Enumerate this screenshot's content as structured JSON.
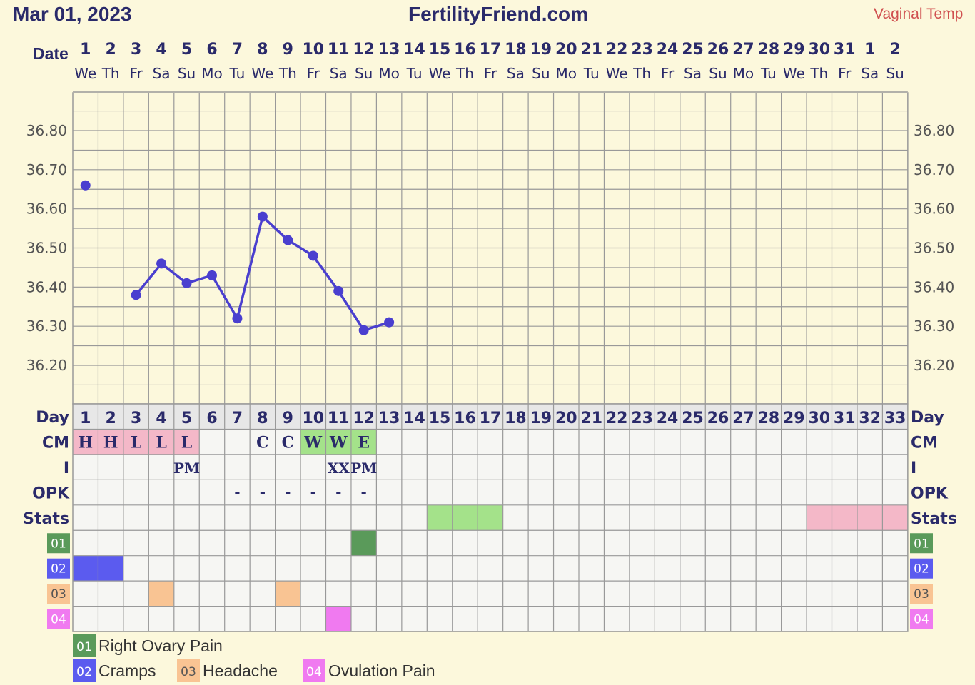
{
  "header": {
    "start_date": "Mar 01, 2023",
    "site": "FertilityFriend.com",
    "temp_type": "Vaginal Temp",
    "date_label": "Date"
  },
  "colors": {
    "background": "#fcf8dc",
    "grid_line": "#999999",
    "temp_line": "#4a3fcf",
    "cm_pink": "#f4b8c8",
    "cm_green": "#a4e28a",
    "stats_green": "#a4e28a",
    "stats_pink": "#f4b8c8",
    "code_01": "#5a9a5a",
    "code_02": "#5b5bef",
    "code_03": "#f9c493",
    "code_04": "#f07af0"
  },
  "dates": {
    "numbers": [
      "1",
      "2",
      "3",
      "4",
      "5",
      "6",
      "7",
      "8",
      "9",
      "10",
      "11",
      "12",
      "13",
      "14",
      "15",
      "16",
      "17",
      "18",
      "19",
      "20",
      "21",
      "22",
      "23",
      "24",
      "25",
      "26",
      "27",
      "28",
      "29",
      "30",
      "31",
      "1",
      "2"
    ],
    "weekdays": [
      "We",
      "Th",
      "Fr",
      "Sa",
      "Su",
      "Mo",
      "Tu",
      "We",
      "Th",
      "Fr",
      "Sa",
      "Su",
      "Mo",
      "Tu",
      "We",
      "Th",
      "Fr",
      "Sa",
      "Su",
      "Mo",
      "Tu",
      "We",
      "Th",
      "Fr",
      "Sa",
      "Su",
      "Mo",
      "Tu",
      "We",
      "Th",
      "Fr",
      "Sa",
      "Su"
    ]
  },
  "chart_data": {
    "type": "line",
    "x_label": "Day",
    "y_ticks": [
      "36.80",
      "36.70",
      "36.60",
      "36.50",
      "36.40",
      "36.30",
      "36.20"
    ],
    "ylim": [
      36.12,
      36.92
    ],
    "grid": true,
    "series": [
      {
        "points": [
          {
            "day": 1,
            "temp": 36.66
          },
          {
            "day": 3,
            "temp": 36.38
          },
          {
            "day": 4,
            "temp": 36.46
          },
          {
            "day": 5,
            "temp": 36.41
          },
          {
            "day": 6,
            "temp": 36.43
          },
          {
            "day": 7,
            "temp": 36.32
          },
          {
            "day": 8,
            "temp": 36.58
          },
          {
            "day": 9,
            "temp": 36.52
          },
          {
            "day": 10,
            "temp": 36.48
          },
          {
            "day": 11,
            "temp": 36.39
          },
          {
            "day": 12,
            "temp": 36.29
          },
          {
            "day": 13,
            "temp": 36.31
          }
        ],
        "connected_from_day": 3
      }
    ]
  },
  "rows": {
    "day_label": "Day",
    "cm_label": "CM",
    "i_label": "I",
    "opk_label": "OPK",
    "stats_label": "Stats",
    "days": [
      "1",
      "2",
      "3",
      "4",
      "5",
      "6",
      "7",
      "8",
      "9",
      "10",
      "11",
      "12",
      "13",
      "14",
      "15",
      "16",
      "17",
      "18",
      "19",
      "20",
      "21",
      "22",
      "23",
      "24",
      "25",
      "26",
      "27",
      "28",
      "29",
      "30",
      "31",
      "32",
      "33"
    ],
    "cm": [
      {
        "day": 1,
        "text": "H",
        "color": "pink"
      },
      {
        "day": 2,
        "text": "H",
        "color": "pink"
      },
      {
        "day": 3,
        "text": "L",
        "color": "pink"
      },
      {
        "day": 4,
        "text": "L",
        "color": "pink"
      },
      {
        "day": 5,
        "text": "L",
        "color": "pink"
      },
      {
        "day": 8,
        "text": "C",
        "color": "none"
      },
      {
        "day": 9,
        "text": "C",
        "color": "none"
      },
      {
        "day": 10,
        "text": "W",
        "color": "green"
      },
      {
        "day": 11,
        "text": "W",
        "color": "green"
      },
      {
        "day": 12,
        "text": "E",
        "color": "green"
      }
    ],
    "intercourse": [
      {
        "day": 5,
        "text": "PM"
      },
      {
        "day": 11,
        "text": "XX"
      },
      {
        "day": 12,
        "text": "PM"
      }
    ],
    "opk": [
      {
        "day": 7,
        "text": "-"
      },
      {
        "day": 8,
        "text": "-"
      },
      {
        "day": 9,
        "text": "-"
      },
      {
        "day": 10,
        "text": "-"
      },
      {
        "day": 11,
        "text": "-"
      },
      {
        "day": 12,
        "text": "-"
      }
    ],
    "stats": [
      {
        "from": 15,
        "to": 17,
        "color": "green"
      },
      {
        "from": 30,
        "to": 33,
        "color": "pink"
      }
    ],
    "codes": [
      {
        "code": "01",
        "days": [
          12
        ],
        "color": "#5a9a5a"
      },
      {
        "code": "02",
        "days": [
          1,
          2
        ],
        "color": "#5b5bef"
      },
      {
        "code": "03",
        "days": [
          4,
          9
        ],
        "color": "#f9c493"
      },
      {
        "code": "04",
        "days": [
          11
        ],
        "color": "#f07af0"
      }
    ]
  },
  "legend": [
    {
      "code": "01",
      "label": "Right Ovary Pain"
    },
    {
      "code": "02",
      "label": "Cramps"
    },
    {
      "code": "03",
      "label": "Headache"
    },
    {
      "code": "04",
      "label": "Ovulation Pain"
    }
  ]
}
